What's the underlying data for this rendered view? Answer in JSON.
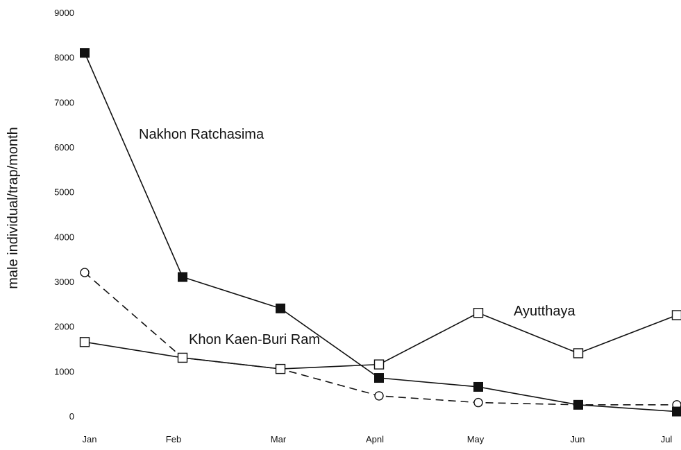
{
  "chart_data": {
    "type": "line",
    "title": "",
    "xlabel": "",
    "ylabel": "male individual/trap/month",
    "categories": [
      "Jan",
      "Feb",
      "Mar",
      "Apnl",
      "May",
      "Jun",
      "Jul"
    ],
    "ylim": [
      0,
      9000
    ],
    "yticks": [
      0,
      1000,
      2000,
      3000,
      4000,
      5000,
      6000,
      7000,
      8000,
      9000
    ],
    "grid": false,
    "legend": "none",
    "series": [
      {
        "name": "Nakhon Ratchasima",
        "values": [
          8100,
          3100,
          2400,
          850,
          650,
          250,
          100
        ],
        "line_style": "solid",
        "marker": "filled-square",
        "color": "#111111"
      },
      {
        "name": "Khon Kaen-Buri Ram",
        "values": [
          3200,
          1300,
          1050,
          450,
          300,
          250,
          250
        ],
        "line_style": "dashed",
        "marker": "open-circle",
        "color": "#111111"
      },
      {
        "name": "Ayutthaya",
        "values": [
          1650,
          1300,
          1050,
          1150,
          2300,
          1400,
          2250
        ],
        "line_style": "solid",
        "marker": "open-square",
        "color": "#111111"
      }
    ]
  }
}
